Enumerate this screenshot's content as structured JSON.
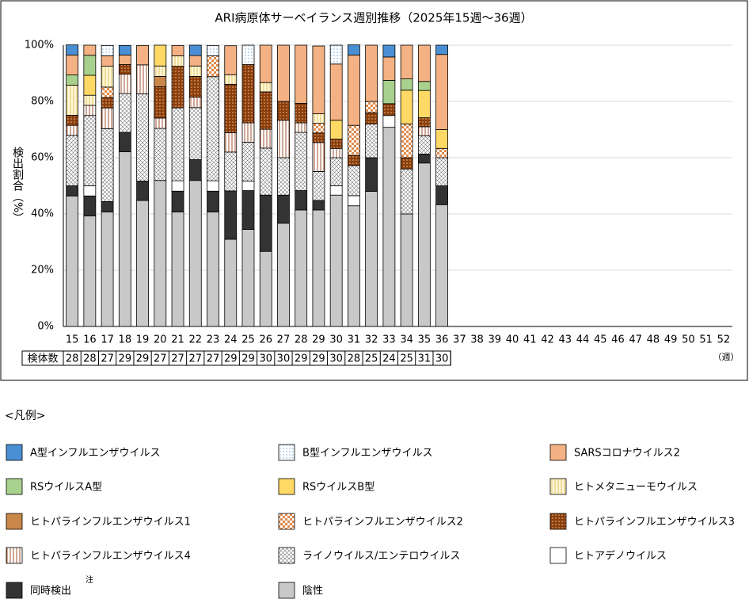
{
  "chart_data": {
    "type": "stacked_bar",
    "title": "ARI病原体サーベイランス週別推移（2025年15週～36週）",
    "y_label": "検出割合（%）",
    "x_unit": "（週）",
    "categories": [
      "15",
      "16",
      "17",
      "18",
      "19",
      "20",
      "21",
      "22",
      "23",
      "24",
      "25",
      "26",
      "27",
      "28",
      "29",
      "30",
      "31",
      "32",
      "33",
      "34",
      "35",
      "36",
      "37",
      "38",
      "39",
      "40",
      "41",
      "42",
      "43",
      "44",
      "45",
      "46",
      "47",
      "48",
      "49",
      "50",
      "51",
      "52"
    ],
    "sample_counts": {
      "label": "検体数",
      "values": [
        28,
        28,
        27,
        29,
        29,
        27,
        27,
        27,
        27,
        29,
        29,
        30,
        30,
        29,
        29,
        30,
        28,
        25,
        24,
        25,
        31,
        30
      ]
    },
    "ylim": [
      0,
      100
    ],
    "yticks": [
      {
        "value": 0,
        "label": "0%"
      },
      {
        "value": 20,
        "label": "20%"
      },
      {
        "value": 40,
        "label": "40%"
      },
      {
        "value": 60,
        "label": "60%"
      },
      {
        "value": 80,
        "label": "80%"
      },
      {
        "value": 100,
        "label": "100%"
      }
    ],
    "grid": true,
    "legend_title": "<凡例>",
    "legend_note": "注",
    "series": [
      {
        "name": "A型インフルエンザウイルス",
        "color": "#4a8fd4",
        "pattern": "none",
        "values": [
          3.6,
          0,
          0,
          3.4,
          0,
          0,
          0,
          3.7,
          0,
          0,
          0,
          0,
          0,
          0,
          0,
          0,
          3.6,
          0,
          4.2,
          0,
          0,
          3.3,
          null,
          null,
          null,
          null,
          null,
          null,
          null,
          null,
          null,
          null,
          null,
          null,
          null,
          null,
          null,
          null
        ]
      },
      {
        "name": "B型インフルエンザウイルス",
        "color": "#cfe3f7",
        "pattern": "dots",
        "values": [
          0,
          0,
          3.7,
          0,
          0,
          0,
          0,
          0,
          3.7,
          0,
          6.9,
          0,
          0,
          0,
          0,
          6.7,
          0,
          0,
          0,
          0,
          0,
          0,
          null,
          null,
          null,
          null,
          null,
          null,
          null,
          null,
          null,
          null,
          null,
          null,
          null,
          null,
          null,
          null
        ]
      },
      {
        "name": "SARSコロナウイルス2",
        "color": "#f4b183",
        "pattern": "none",
        "values": [
          7.1,
          3.6,
          3.7,
          3.4,
          6.9,
          0,
          3.7,
          3.7,
          0,
          10.3,
          0,
          13.3,
          20,
          20.7,
          24.1,
          20,
          25,
          20,
          8.3,
          12,
          12.9,
          26.7,
          null,
          null,
          null,
          null,
          null,
          null,
          null,
          null,
          null,
          null,
          null,
          null,
          null,
          null,
          null,
          null
        ]
      },
      {
        "name": "RSウイルスA型",
        "color": "#a9d18e",
        "pattern": "none",
        "values": [
          3.6,
          7.1,
          0,
          0,
          0,
          0,
          0,
          0,
          0,
          0,
          0,
          0,
          0,
          0,
          0,
          0,
          0,
          0,
          8.3,
          4,
          3.2,
          0,
          null,
          null,
          null,
          null,
          null,
          null,
          null,
          null,
          null,
          null,
          null,
          null,
          null,
          null,
          null,
          null
        ]
      },
      {
        "name": "RSウイルスB型",
        "color": "#ffd966",
        "pattern": "none",
        "values": [
          0,
          7.1,
          0,
          0,
          0,
          7.4,
          0,
          0,
          0,
          0,
          0,
          0,
          0,
          0,
          0,
          6.7,
          0,
          0,
          0,
          12,
          9.7,
          6.7,
          null,
          null,
          null,
          null,
          null,
          null,
          null,
          null,
          null,
          null,
          null,
          null,
          null,
          null,
          null,
          null
        ]
      },
      {
        "name": "ヒトメタニューモウイルス",
        "color": "#e0c060",
        "pattern": "vlines-light",
        "values": [
          10.7,
          3.6,
          7.4,
          0,
          0,
          3.7,
          3.7,
          3.7,
          0,
          3.4,
          0,
          3.3,
          0,
          0,
          3.4,
          0,
          0,
          0,
          0,
          0,
          0,
          0,
          null,
          null,
          null,
          null,
          null,
          null,
          null,
          null,
          null,
          null,
          null,
          null,
          null,
          null,
          null,
          null
        ]
      },
      {
        "name": "ヒトパラインフルエンザウイルス1",
        "color": "#c9874a",
        "pattern": "none",
        "values": [
          0,
          0,
          0,
          0,
          0,
          3.7,
          0,
          0,
          0,
          0,
          0,
          0,
          0,
          0,
          0,
          0,
          0,
          0,
          0,
          0,
          0,
          0,
          null,
          null,
          null,
          null,
          null,
          null,
          null,
          null,
          null,
          null,
          null,
          null,
          null,
          null,
          null,
          null
        ]
      },
      {
        "name": "ヒトパラインフルエンザウイルス2",
        "color": "#e08a4a",
        "pattern": "checker",
        "values": [
          0,
          0,
          3.7,
          0,
          0,
          0,
          0,
          0,
          7.4,
          0,
          0,
          0,
          0,
          0,
          3.4,
          0,
          10.7,
          4,
          0,
          12,
          0,
          3.3,
          null,
          null,
          null,
          null,
          null,
          null,
          null,
          null,
          null,
          null,
          null,
          null,
          null,
          null,
          null,
          null
        ]
      },
      {
        "name": "ヒトパラインフルエンザウイルス3",
        "color": "#8b3e0b",
        "pattern": "dots-dark",
        "values": [
          3.6,
          0,
          3.7,
          3.4,
          0,
          11.1,
          14.8,
          7.4,
          0,
          17.2,
          20.7,
          13.3,
          6.7,
          6.9,
          3.4,
          3.3,
          3.6,
          4,
          4.2,
          4,
          3.2,
          0,
          null,
          null,
          null,
          null,
          null,
          null,
          null,
          null,
          null,
          null,
          null,
          null,
          null,
          null,
          null,
          null
        ]
      },
      {
        "name": "ヒトパラインフルエンザウイルス4",
        "color": "#a0522d",
        "pattern": "vlines",
        "values": [
          3.6,
          3.6,
          7.4,
          6.9,
          10.3,
          3.7,
          0,
          3.7,
          0,
          6.9,
          6.9,
          6.7,
          13.3,
          3.4,
          10.3,
          3.3,
          0,
          0,
          0,
          0,
          3.2,
          0,
          null,
          null,
          null,
          null,
          null,
          null,
          null,
          null,
          null,
          null,
          null,
          null,
          null,
          null,
          null,
          null
        ]
      },
      {
        "name": "ライノウイルス/エンテロウイルス",
        "color": "#777777",
        "pattern": "crosshatch",
        "values": [
          17.9,
          25,
          25.9,
          13.8,
          31,
          18.5,
          25.9,
          18.5,
          37,
          13.8,
          13.8,
          16.7,
          13.3,
          20.7,
          10.3,
          10,
          10.7,
          12,
          0,
          16,
          6.5,
          10,
          null,
          null,
          null,
          null,
          null,
          null,
          null,
          null,
          null,
          null,
          null,
          null,
          null,
          null,
          null,
          null
        ]
      },
      {
        "name": "ヒトアデノウイルス",
        "color": "#ffffff",
        "pattern": "none",
        "values": [
          0,
          3.6,
          0,
          0,
          0,
          0,
          3.7,
          0,
          3.7,
          0,
          3.4,
          0,
          0,
          0,
          0,
          3.3,
          3.6,
          0,
          4.2,
          0,
          0,
          0,
          null,
          null,
          null,
          null,
          null,
          null,
          null,
          null,
          null,
          null,
          null,
          null,
          null,
          null,
          null,
          null
        ]
      },
      {
        "name": "同時検出",
        "color": "#333333",
        "pattern": "none",
        "values": [
          3.6,
          7.1,
          3.7,
          6.9,
          6.9,
          0,
          7.4,
          7.4,
          7.4,
          17.2,
          13.8,
          20,
          10,
          6.9,
          3.4,
          0,
          0,
          12,
          0,
          0,
          3.2,
          6.7,
          null,
          null,
          null,
          null,
          null,
          null,
          null,
          null,
          null,
          null,
          null,
          null,
          null,
          null,
          null,
          null
        ]
      },
      {
        "name": "陰性",
        "color": "#c8c8c8",
        "pattern": "none",
        "values": [
          46.4,
          39.3,
          40.7,
          62.1,
          44.8,
          51.9,
          40.7,
          51.9,
          40.7,
          31,
          34.5,
          26.7,
          36.7,
          41.4,
          41.4,
          46.7,
          42.9,
          48,
          70.8,
          40,
          58.1,
          43.3,
          null,
          null,
          null,
          null,
          null,
          null,
          null,
          null,
          null,
          null,
          null,
          null,
          null,
          null,
          null,
          null
        ]
      }
    ]
  }
}
